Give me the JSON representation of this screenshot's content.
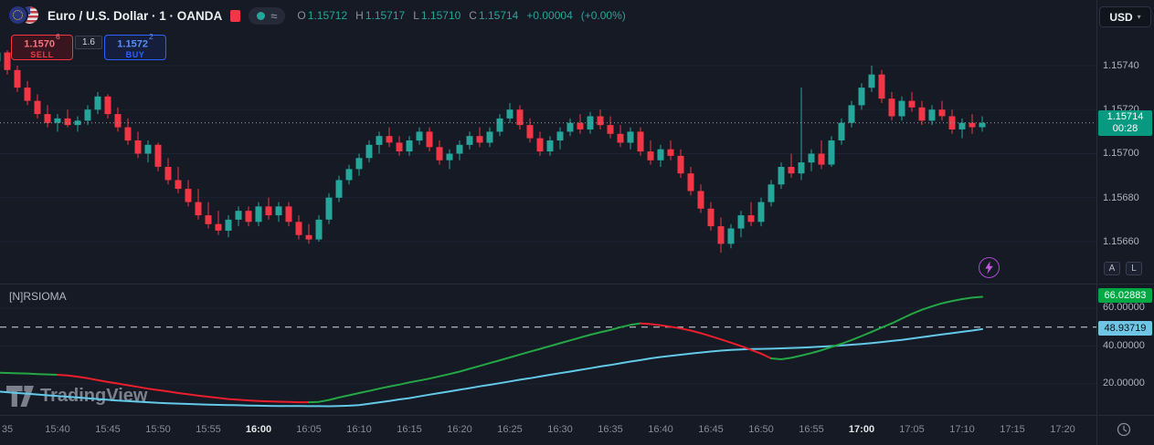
{
  "header": {
    "title": "Euro / U.S. Dollar · 1 · OANDA",
    "ohlc": {
      "o_label": "O",
      "o_value": "1.15712",
      "h_label": "H",
      "h_value": "1.15717",
      "l_label": "L",
      "l_value": "1.15710",
      "c_label": "C",
      "c_value": "1.15714",
      "change": "+0.00004",
      "change_pct": "(+0.00%)"
    },
    "currency": "USD"
  },
  "icons": {
    "chevron_down": "▾",
    "approx": "≈"
  },
  "order_panel": {
    "sell": {
      "price": "1.1570",
      "pip": "6",
      "label": "SELL"
    },
    "spread": "1.6",
    "buy": {
      "price": "1.1572",
      "pip": "2",
      "label": "BUY"
    }
  },
  "price_scale": {
    "labels": [
      "1.15740",
      "1.15720",
      "1.15700",
      "1.15680",
      "1.15660"
    ],
    "current": {
      "price": "1.15714",
      "countdown": "00:28"
    }
  },
  "main_buttons": {
    "auto": "A",
    "log": "L"
  },
  "indicator_panel": {
    "title": "[N]RSIOMA",
    "badges": [
      {
        "value": "66.02883",
        "color": "#00a843",
        "text_color": "#ffffff"
      },
      {
        "value": "48.93719",
        "color": "#6fc5e6",
        "text_color": "#0b0e15"
      }
    ],
    "scale_labels": [
      "60.00000",
      "40.00000",
      "20.00000"
    ]
  },
  "time_axis": {
    "labels": [
      {
        "text": "35",
        "strong": false
      },
      {
        "text": "15:40",
        "strong": false
      },
      {
        "text": "15:45",
        "strong": false
      },
      {
        "text": "15:50",
        "strong": false
      },
      {
        "text": "15:55",
        "strong": false
      },
      {
        "text": "16:00",
        "strong": true
      },
      {
        "text": "16:05",
        "strong": false
      },
      {
        "text": "16:10",
        "strong": false
      },
      {
        "text": "16:15",
        "strong": false
      },
      {
        "text": "16:20",
        "strong": false
      },
      {
        "text": "16:25",
        "strong": false
      },
      {
        "text": "16:30",
        "strong": false
      },
      {
        "text": "16:35",
        "strong": false
      },
      {
        "text": "16:40",
        "strong": false
      },
      {
        "text": "16:45",
        "strong": false
      },
      {
        "text": "16:50",
        "strong": false
      },
      {
        "text": "16:55",
        "strong": false
      },
      {
        "text": "17:00",
        "strong": true
      },
      {
        "text": "17:05",
        "strong": false
      },
      {
        "text": "17:10",
        "strong": false
      },
      {
        "text": "17:15",
        "strong": false
      },
      {
        "text": "17:20",
        "strong": false
      }
    ]
  },
  "watermark": {
    "text": "TradingView"
  },
  "colors": {
    "up": "#26a69a",
    "down": "#f23645",
    "rsi_up": "#24a744",
    "rsi_down": "#eb1e2b",
    "ma": "#62c9e8",
    "current_badge": "#089981"
  },
  "chart_data": {
    "type": "candlestick",
    "pair": "Euro / U.S. Dollar",
    "exchange": "OANDA",
    "interval": "1 minute",
    "time_start": "15:34",
    "time_end": "17:12",
    "price_axis": [
      1.1574,
      1.1572,
      1.157,
      1.1568,
      1.1566
    ],
    "last_close": 1.15714,
    "candles": [
      [
        1.15742,
        1.15748,
        1.15738,
        1.15746
      ],
      [
        1.15746,
        1.15747,
        1.15736,
        1.15738
      ],
      [
        1.15738,
        1.1574,
        1.15728,
        1.1573
      ],
      [
        1.1573,
        1.15733,
        1.15722,
        1.15724
      ],
      [
        1.15724,
        1.15727,
        1.15716,
        1.15718
      ],
      [
        1.15718,
        1.15722,
        1.15712,
        1.15714
      ],
      [
        1.15714,
        1.15718,
        1.1571,
        1.15716
      ],
      [
        1.15716,
        1.1572,
        1.15712,
        1.15713
      ],
      [
        1.15713,
        1.15717,
        1.1571,
        1.15715
      ],
      [
        1.15715,
        1.15722,
        1.15713,
        1.1572
      ],
      [
        1.1572,
        1.15728,
        1.15718,
        1.15726
      ],
      [
        1.15726,
        1.15727,
        1.15716,
        1.15718
      ],
      [
        1.15718,
        1.15721,
        1.1571,
        1.15712
      ],
      [
        1.15712,
        1.15716,
        1.15704,
        1.15706
      ],
      [
        1.15706,
        1.1571,
        1.15698,
        1.157
      ],
      [
        1.157,
        1.15706,
        1.15696,
        1.15704
      ],
      [
        1.15704,
        1.15705,
        1.15692,
        1.15694
      ],
      [
        1.15694,
        1.15698,
        1.15686,
        1.15688
      ],
      [
        1.15688,
        1.15694,
        1.15682,
        1.15684
      ],
      [
        1.15684,
        1.15688,
        1.15676,
        1.15678
      ],
      [
        1.15678,
        1.15684,
        1.1567,
        1.15672
      ],
      [
        1.15672,
        1.15678,
        1.15666,
        1.15668
      ],
      [
        1.15668,
        1.15674,
        1.15663,
        1.15665
      ],
      [
        1.15665,
        1.15672,
        1.15662,
        1.1567
      ],
      [
        1.1567,
        1.15676,
        1.15667,
        1.15674
      ],
      [
        1.15674,
        1.15676,
        1.15667,
        1.15669
      ],
      [
        1.15669,
        1.15678,
        1.15667,
        1.15676
      ],
      [
        1.15676,
        1.1568,
        1.1567,
        1.15672
      ],
      [
        1.15672,
        1.15678,
        1.15669,
        1.15676
      ],
      [
        1.15676,
        1.15678,
        1.15667,
        1.15669
      ],
      [
        1.15669,
        1.15672,
        1.15661,
        1.15663
      ],
      [
        1.15663,
        1.15668,
        1.15659,
        1.15661
      ],
      [
        1.15661,
        1.15672,
        1.1566,
        1.1567
      ],
      [
        1.1567,
        1.15682,
        1.15668,
        1.1568
      ],
      [
        1.1568,
        1.1569,
        1.15678,
        1.15688
      ],
      [
        1.15688,
        1.15695,
        1.15686,
        1.15693
      ],
      [
        1.15693,
        1.157,
        1.1569,
        1.15698
      ],
      [
        1.15698,
        1.15706,
        1.15696,
        1.15704
      ],
      [
        1.15704,
        1.1571,
        1.157,
        1.15708
      ],
      [
        1.15708,
        1.15712,
        1.15703,
        1.15705
      ],
      [
        1.15705,
        1.15708,
        1.15699,
        1.15701
      ],
      [
        1.15701,
        1.15708,
        1.15699,
        1.15706
      ],
      [
        1.15706,
        1.15712,
        1.15704,
        1.1571
      ],
      [
        1.1571,
        1.15712,
        1.15701,
        1.15703
      ],
      [
        1.15703,
        1.15706,
        1.15695,
        1.15697
      ],
      [
        1.15697,
        1.15702,
        1.15693,
        1.157
      ],
      [
        1.157,
        1.15706,
        1.15697,
        1.15704
      ],
      [
        1.15704,
        1.1571,
        1.15702,
        1.15708
      ],
      [
        1.15708,
        1.15712,
        1.15703,
        1.15705
      ],
      [
        1.15705,
        1.15712,
        1.15703,
        1.1571
      ],
      [
        1.1571,
        1.15718,
        1.15708,
        1.15716
      ],
      [
        1.15716,
        1.15723,
        1.15714,
        1.1572
      ],
      [
        1.1572,
        1.15722,
        1.15711,
        1.15713
      ],
      [
        1.15713,
        1.15716,
        1.15705,
        1.15707
      ],
      [
        1.15707,
        1.1571,
        1.15699,
        1.15701
      ],
      [
        1.15701,
        1.15708,
        1.15699,
        1.15706
      ],
      [
        1.15706,
        1.15712,
        1.15702,
        1.1571
      ],
      [
        1.1571,
        1.15716,
        1.15708,
        1.15714
      ],
      [
        1.15714,
        1.15718,
        1.15709,
        1.15711
      ],
      [
        1.15711,
        1.15719,
        1.15709,
        1.15717
      ],
      [
        1.15717,
        1.1572,
        1.15711,
        1.15713
      ],
      [
        1.15713,
        1.15717,
        1.15707,
        1.15709
      ],
      [
        1.15709,
        1.15713,
        1.15703,
        1.15705
      ],
      [
        1.15705,
        1.15712,
        1.15702,
        1.1571
      ],
      [
        1.1571,
        1.15712,
        1.15699,
        1.15701
      ],
      [
        1.15701,
        1.15706,
        1.15695,
        1.15697
      ],
      [
        1.15697,
        1.15704,
        1.15694,
        1.15702
      ],
      [
        1.15702,
        1.15706,
        1.15697,
        1.15699
      ],
      [
        1.15699,
        1.15702,
        1.15689,
        1.15691
      ],
      [
        1.15691,
        1.15694,
        1.15681,
        1.15683
      ],
      [
        1.15683,
        1.15686,
        1.15673,
        1.15675
      ],
      [
        1.15675,
        1.15678,
        1.15665,
        1.15667
      ],
      [
        1.15667,
        1.15671,
        1.15655,
        1.15659
      ],
      [
        1.15659,
        1.15668,
        1.15657,
        1.15666
      ],
      [
        1.15666,
        1.15674,
        1.15662,
        1.15672
      ],
      [
        1.15672,
        1.15678,
        1.15667,
        1.15669
      ],
      [
        1.15669,
        1.1568,
        1.15667,
        1.15678
      ],
      [
        1.15678,
        1.15688,
        1.15676,
        1.15686
      ],
      [
        1.15686,
        1.15696,
        1.15684,
        1.15694
      ],
      [
        1.15694,
        1.157,
        1.15689,
        1.15691
      ],
      [
        1.15691,
        1.1573,
        1.15688,
        1.15696
      ],
      [
        1.15696,
        1.15702,
        1.15692,
        1.157
      ],
      [
        1.157,
        1.15706,
        1.15693,
        1.15695
      ],
      [
        1.15695,
        1.15708,
        1.15694,
        1.15706
      ],
      [
        1.15706,
        1.15716,
        1.15704,
        1.15714
      ],
      [
        1.15714,
        1.15724,
        1.15712,
        1.15722
      ],
      [
        1.15722,
        1.15732,
        1.1572,
        1.1573
      ],
      [
        1.1573,
        1.1574,
        1.15728,
        1.15736
      ],
      [
        1.15736,
        1.15738,
        1.15723,
        1.15725
      ],
      [
        1.15725,
        1.15728,
        1.15715,
        1.15717
      ],
      [
        1.15717,
        1.15726,
        1.15715,
        1.15724
      ],
      [
        1.15724,
        1.15728,
        1.15719,
        1.15721
      ],
      [
        1.15721,
        1.15724,
        1.15713,
        1.15715
      ],
      [
        1.15715,
        1.15722,
        1.15713,
        1.1572
      ],
      [
        1.1572,
        1.15724,
        1.15715,
        1.15717
      ],
      [
        1.15717,
        1.1572,
        1.15709,
        1.15711
      ],
      [
        1.15711,
        1.15716,
        1.15707,
        1.15714
      ],
      [
        1.15714,
        1.15718,
        1.15709,
        1.15712
      ],
      [
        1.15712,
        1.15717,
        1.1571,
        1.15714
      ]
    ],
    "rsioma": {
      "name": "[N]RSIOMA",
      "level_line": 50,
      "axis": [
        60,
        40,
        20
      ],
      "last_rsi": 66.02883,
      "last_ma": 48.93719,
      "rsi": [
        26,
        25.8,
        25.6,
        25.5,
        25.2,
        25,
        24.8,
        24.5,
        23.8,
        23,
        22,
        21,
        20.2,
        19.3,
        18.4,
        17.5,
        16.7,
        16,
        15.2,
        14.5,
        13.8,
        13.2,
        12.6,
        12,
        11.6,
        11.3,
        11,
        10.8,
        10.6,
        10.5,
        10.3,
        10.3,
        10.5,
        11.5,
        12.8,
        14,
        15.2,
        16.3,
        17.5,
        18.6,
        19.6,
        20.8,
        21.8,
        22.8,
        24,
        25.2,
        26.5,
        28,
        29.5,
        31,
        32.5,
        34,
        35.5,
        37,
        38.5,
        40,
        41.5,
        43,
        44.5,
        46,
        47.3,
        48.5,
        50,
        51.2,
        52,
        51.6,
        51,
        50.2,
        49.3,
        48.2,
        46.8,
        45.2,
        43.5,
        41.8,
        40,
        38,
        36,
        33.5,
        33,
        33.8,
        35,
        36.3,
        37.8,
        39.5,
        41.2,
        43.2,
        45.3,
        47.5,
        49.8,
        52,
        54.5,
        57,
        59.2,
        61,
        62.6,
        63.8,
        64.8,
        65.6,
        66.03
      ],
      "segments": [
        [
          0,
          6,
          "up"
        ],
        [
          6,
          31,
          "down"
        ],
        [
          31,
          64,
          "up"
        ],
        [
          64,
          77,
          "down"
        ],
        [
          77,
          98,
          "up"
        ]
      ],
      "ma": [
        16,
        15.6,
        15.2,
        14.8,
        14.4,
        14,
        13.6,
        13.2,
        12.8,
        12.4,
        12,
        11.6,
        11.2,
        10.9,
        10.6,
        10.3,
        10,
        9.8,
        9.6,
        9.4,
        9.2,
        9,
        8.9,
        8.8,
        8.7,
        8.6,
        8.5,
        8.4,
        8.35,
        8.3,
        8.28,
        8.25,
        8.22,
        8.2,
        8.3,
        8.5,
        8.8,
        9.5,
        10.2,
        11,
        11.8,
        12.5,
        13.4,
        14.3,
        15.2,
        16,
        16.9,
        17.8,
        18.7,
        19.5,
        20.4,
        21.3,
        22.2,
        23,
        23.9,
        24.8,
        25.7,
        26.5,
        27.4,
        28.3,
        29.2,
        30,
        30.9,
        31.8,
        32.6,
        33.5,
        34.2,
        34.8,
        35.4,
        36,
        36.6,
        37.1,
        37.6,
        38,
        38.2,
        38.4,
        38.5,
        38.6,
        38.8,
        39,
        39.2,
        39.4,
        39.7,
        40,
        40.3,
        40.7,
        41.1,
        41.6,
        42.1,
        42.7,
        43.3,
        44,
        44.7,
        45.4,
        46.1,
        46.8,
        47.5,
        48.2,
        48.94
      ]
    }
  }
}
